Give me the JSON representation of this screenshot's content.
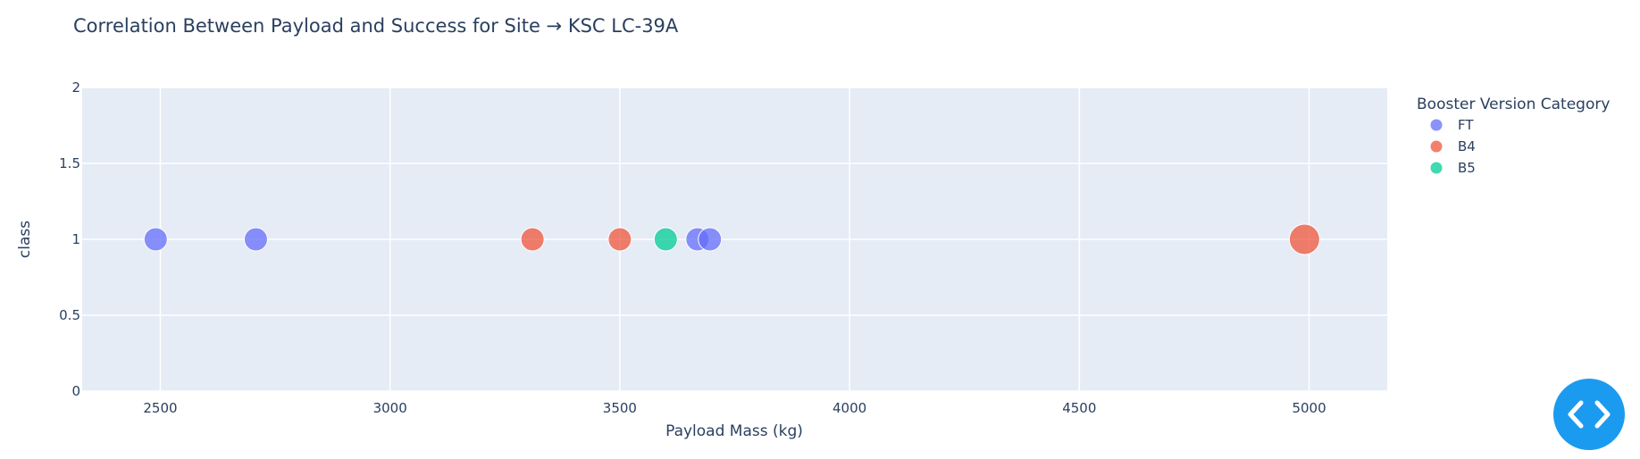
{
  "chart_data": {
    "type": "scatter",
    "title": "Correlation Between Payload and Success for Site → KSC LC-39A",
    "xlabel": "Payload Mass (kg)",
    "ylabel": "class",
    "xlim": [
      2330,
      5170
    ],
    "ylim": [
      0,
      2
    ],
    "x_ticks": [
      2500,
      3000,
      3500,
      4000,
      4500,
      5000
    ],
    "y_ticks": [
      0,
      0.5,
      1,
      1.5,
      2
    ],
    "y_tick_labels": [
      "0",
      "0.5",
      "1",
      "1.5",
      "2"
    ],
    "grid": true,
    "legend": {
      "title": "Booster Version Category",
      "placement": "top-right",
      "entries": [
        "FT",
        "B4",
        "B5"
      ]
    },
    "series": [
      {
        "name": "FT",
        "color": "#636efa",
        "points": [
          {
            "x": 2490,
            "y": 1
          },
          {
            "x": 2708,
            "y": 1
          },
          {
            "x": 3669,
            "y": 1
          },
          {
            "x": 3696,
            "y": 1
          }
        ]
      },
      {
        "name": "B4",
        "color": "#ef553b",
        "points": [
          {
            "x": 3310,
            "y": 1
          },
          {
            "x": 3500,
            "y": 1
          },
          {
            "x": 4990,
            "y": 1,
            "size": "large"
          }
        ]
      },
      {
        "name": "B5",
        "color": "#00cc96",
        "points": [
          {
            "x": 3600,
            "y": 1
          }
        ]
      }
    ]
  },
  "controls": {
    "code_toggle_icon": "code-brackets-icon"
  }
}
